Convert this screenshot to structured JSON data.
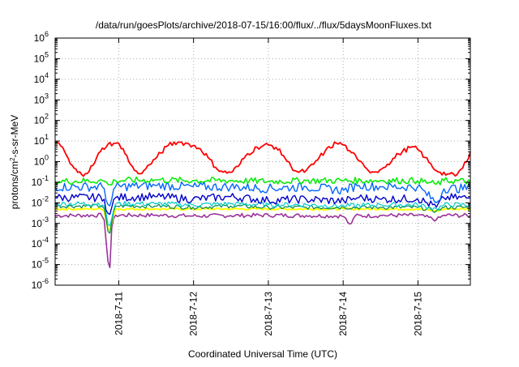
{
  "chart_data": {
    "type": "line",
    "title": "/data/run/goesPlots/archive/2018-07-15/16:00/flux/../flux/5daysMoonFluxes.txt",
    "xlabel": "Coordinated Universal Time (UTC)",
    "ylabel": {
      "prefix": "protons/cm",
      "sup": "2",
      "suffix": "-s-sr-MeV"
    },
    "y_scale": "log",
    "ylim": [
      1e-06,
      1000000.0
    ],
    "y_ticks": [
      {
        "value": 1e-06,
        "base": "10",
        "exp": "-6"
      },
      {
        "value": 1e-05,
        "base": "10",
        "exp": "-5"
      },
      {
        "value": 0.0001,
        "base": "10",
        "exp": "-4"
      },
      {
        "value": 0.001,
        "base": "10",
        "exp": "-3"
      },
      {
        "value": 0.01,
        "base": "10",
        "exp": "-2"
      },
      {
        "value": 0.1,
        "base": "10",
        "exp": "-1"
      },
      {
        "value": 1,
        "base": "10",
        "exp": "0"
      },
      {
        "value": 10,
        "base": "10",
        "exp": "1"
      },
      {
        "value": 100,
        "base": "10",
        "exp": "2"
      },
      {
        "value": 1000,
        "base": "10",
        "exp": "3"
      },
      {
        "value": 10000,
        "base": "10",
        "exp": "4"
      },
      {
        "value": 100000,
        "base": "10",
        "exp": "5"
      },
      {
        "value": 1000000,
        "base": "10",
        "exp": "6"
      }
    ],
    "x_unit": "day of July 2018",
    "xlim": [
      10.15,
      15.7
    ],
    "x_ticks": [
      {
        "value": 11,
        "label": "2018-7-11"
      },
      {
        "value": 12,
        "label": "2018-7-12"
      },
      {
        "value": 13,
        "label": "2018-7-13"
      },
      {
        "value": 14,
        "label": "2018-7-14"
      },
      {
        "value": 15,
        "label": "2018-7-15"
      }
    ],
    "grid": true,
    "series": [
      {
        "color": "#ff0000",
        "width": 1.8,
        "base": 1.0,
        "noise": 0.12,
        "x": [
          10.15,
          10.25,
          10.35,
          10.45,
          10.55,
          10.65,
          10.75,
          10.85,
          10.95,
          11.05,
          11.15,
          11.25,
          11.35,
          11.5,
          11.65,
          11.8,
          11.95,
          12.1,
          12.2,
          12.3,
          12.4,
          12.5,
          12.6,
          12.7,
          12.85,
          13.0,
          13.1,
          13.2,
          13.3,
          13.4,
          13.5,
          13.6,
          13.75,
          13.9,
          14.0,
          14.1,
          14.2,
          14.3,
          14.4,
          14.5,
          14.6,
          14.75,
          14.9,
          15.0,
          15.1,
          15.2,
          15.3,
          15.4,
          15.5,
          15.6,
          15.7
        ],
        "y": [
          8,
          5,
          0.8,
          0.3,
          0.25,
          0.6,
          3,
          7,
          8,
          5,
          0.8,
          0.25,
          0.4,
          1.5,
          6,
          9,
          7,
          4,
          1.5,
          0.5,
          0.3,
          0.3,
          0.6,
          2,
          5,
          6.5,
          5,
          2,
          0.6,
          0.3,
          0.35,
          0.7,
          3,
          8,
          7,
          3,
          1.2,
          0.5,
          0.3,
          0.4,
          0.8,
          2.5,
          5,
          4,
          1.5,
          0.5,
          0.3,
          0.25,
          0.2,
          0.5,
          3
        ]
      },
      {
        "color": "#00ee00",
        "width": 1.5,
        "base": 0.12,
        "noise": 0.16,
        "x": [
          10.15,
          10.8,
          10.87,
          10.95,
          11.5,
          12.0,
          12.5,
          13.0,
          13.5,
          14.0,
          14.5,
          15.0,
          15.25,
          15.35,
          15.7
        ],
        "y": [
          0.11,
          0.12,
          0.07,
          0.12,
          0.13,
          0.12,
          0.12,
          0.11,
          0.12,
          0.12,
          0.12,
          0.12,
          0.08,
          0.12,
          0.11
        ]
      },
      {
        "color": "#0066ff",
        "width": 1.4,
        "base": 0.05,
        "noise": 0.22,
        "x": [
          10.15,
          10.8,
          10.87,
          10.95,
          11.5,
          12.0,
          12.5,
          13.0,
          13.5,
          14.0,
          14.2,
          14.5,
          15.0,
          15.25,
          15.35,
          15.7
        ],
        "y": [
          0.06,
          0.06,
          0.005,
          0.06,
          0.07,
          0.06,
          0.06,
          0.05,
          0.06,
          0.04,
          0.07,
          0.06,
          0.06,
          0.01,
          0.05,
          0.05
        ]
      },
      {
        "color": "#0000cc",
        "width": 1.4,
        "base": 0.015,
        "noise": 0.2,
        "x": [
          10.15,
          10.8,
          10.87,
          10.95,
          11.5,
          12.0,
          12.5,
          13.0,
          13.5,
          14.0,
          14.2,
          14.5,
          15.0,
          15.25,
          15.35,
          15.7
        ],
        "y": [
          0.018,
          0.018,
          0.002,
          0.018,
          0.02,
          0.015,
          0.02,
          0.013,
          0.015,
          0.012,
          0.018,
          0.015,
          0.016,
          0.006,
          0.018,
          0.017
        ]
      },
      {
        "color": "#00cccc",
        "width": 1.2,
        "base": 0.009,
        "noise": 0.12,
        "x": [
          10.15,
          10.8,
          10.87,
          10.95,
          11.5,
          12.0,
          12.5,
          13.0,
          13.5,
          14.0,
          14.5,
          15.0,
          15.25,
          15.35,
          15.7
        ],
        "y": [
          0.009,
          0.009,
          0.0005,
          0.009,
          0.009,
          0.008,
          0.009,
          0.008,
          0.008,
          0.007,
          0.008,
          0.008,
          0.005,
          0.008,
          0.008
        ]
      },
      {
        "color": "#008844",
        "width": 1.2,
        "base": 0.007,
        "noise": 0.1,
        "x": [
          10.15,
          10.8,
          10.87,
          10.95,
          11.5,
          12.0,
          12.5,
          13.0,
          13.5,
          14.0,
          14.5,
          15.0,
          15.25,
          15.35,
          15.7
        ],
        "y": [
          0.007,
          0.007,
          0.0002,
          0.007,
          0.007,
          0.006,
          0.007,
          0.006,
          0.006,
          0.006,
          0.006,
          0.006,
          0.004,
          0.006,
          0.006
        ]
      },
      {
        "color": "#ffff00",
        "width": 2.0,
        "base": 0.005,
        "noise": 0.05,
        "x": [
          10.15,
          10.8,
          10.87,
          10.95,
          11.5,
          12.0,
          12.5,
          13.0,
          13.5,
          14.0,
          14.5,
          15.0,
          15.25,
          15.35,
          15.7
        ],
        "y": [
          0.005,
          0.005,
          0.0003,
          0.005,
          0.005,
          0.005,
          0.005,
          0.005,
          0.005,
          0.005,
          0.005,
          0.005,
          0.004,
          0.005,
          0.005
        ]
      },
      {
        "color": "#993399",
        "width": 1.6,
        "base": 0.0025,
        "noise": 0.1,
        "x": [
          10.15,
          10.8,
          10.86,
          10.88,
          10.9,
          10.95,
          11.5,
          12.0,
          12.5,
          13.0,
          13.5,
          14.0,
          14.1,
          14.15,
          14.5,
          15.0,
          15.25,
          15.35,
          15.7
        ],
        "y": [
          0.0024,
          0.0025,
          1e-05,
          5e-06,
          0.0005,
          0.0025,
          0.0025,
          0.0023,
          0.0024,
          0.0025,
          0.0024,
          0.0023,
          0.0008,
          0.0023,
          0.0024,
          0.0025,
          0.0015,
          0.0025,
          0.0024
        ]
      }
    ]
  }
}
